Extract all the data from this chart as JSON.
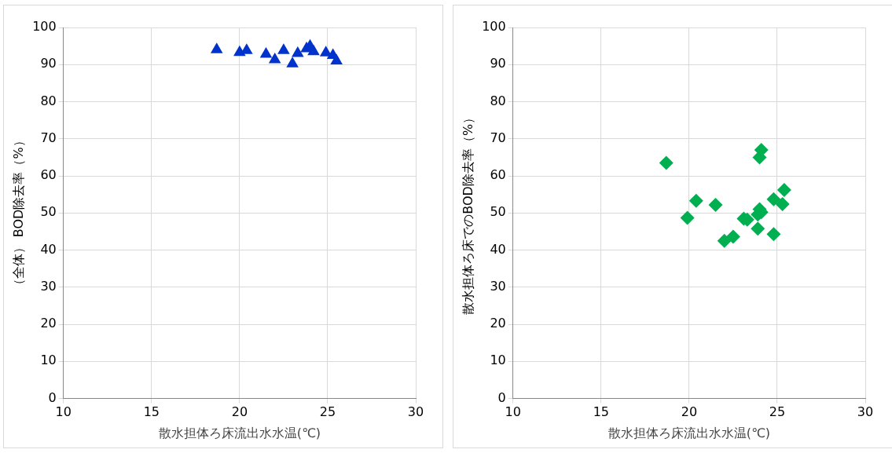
{
  "chart_data": [
    {
      "type": "scatter",
      "xlabel": "散水担体ろ床流出水水温(℃)",
      "ylabel": "（全体） BOD除去率（%）",
      "marker": "triangle",
      "grid": true,
      "legend": false,
      "xlim": [
        10,
        30
      ],
      "xticks": [
        10,
        15,
        20,
        25,
        30
      ],
      "ylim": [
        0,
        100
      ],
      "yticks": [
        0,
        10,
        20,
        30,
        40,
        50,
        60,
        70,
        80,
        90,
        100
      ],
      "series": [
        {
          "color": "#0033cc",
          "x": [
            18.7,
            20.0,
            20.4,
            21.5,
            22.0,
            22.5,
            23.0,
            23.3,
            23.8,
            24.0,
            24.2,
            24.9,
            25.3,
            25.5
          ],
          "values": [
            94,
            93.3,
            93.8,
            92.8,
            91.3,
            93.8,
            90.2,
            93,
            94.3,
            95,
            93.5,
            93.2,
            92.5,
            91
          ]
        }
      ]
    },
    {
      "type": "scatter",
      "xlabel": "散水担体ろ床流出水水温(℃)",
      "ylabel": "散水担体ろ床でのBOD除去率（%）",
      "marker": "diamond",
      "grid": true,
      "legend": false,
      "xlim": [
        10,
        30
      ],
      "xticks": [
        10,
        15,
        20,
        25,
        30
      ],
      "ylim": [
        0,
        100
      ],
      "yticks": [
        0,
        10,
        20,
        30,
        40,
        50,
        60,
        70,
        80,
        90,
        100
      ],
      "series": [
        {
          "color": "#00b050",
          "x": [
            18.7,
            19.9,
            20.4,
            21.5,
            22.0,
            22.5,
            23.1,
            23.3,
            23.9,
            24.0,
            24.1,
            23.9,
            24.0,
            24.1,
            24.8,
            24.8,
            25.3,
            25.4
          ],
          "values": [
            63.5,
            48.7,
            53.3,
            52.2,
            42.5,
            43.6,
            48.5,
            48.2,
            49.6,
            51,
            50.2,
            45.8,
            65,
            67,
            44.3,
            53.7,
            52.4,
            56.2
          ]
        }
      ]
    }
  ]
}
